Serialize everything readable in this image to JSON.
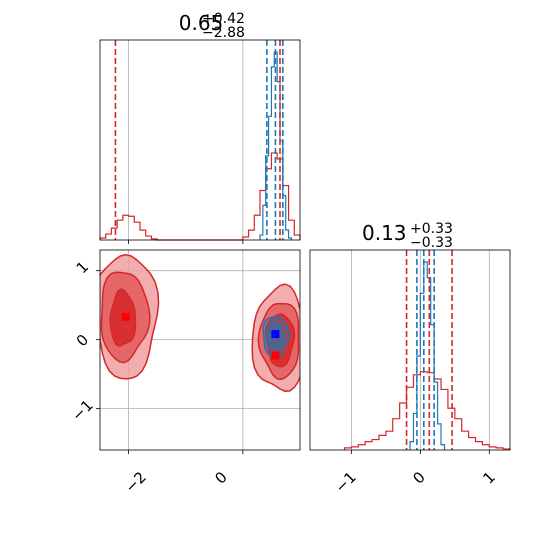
{
  "colors": {
    "red": "#d62728",
    "blue": "#1f77b4",
    "red_fill_outer": "#f0a0a0",
    "red_fill_mid": "#e35a5a",
    "red_fill_inner": "#d62728",
    "grid": "#b0b0b0",
    "marker_blue": "#0000ff",
    "marker_red": "#ff0000"
  },
  "chart_data": [
    {
      "type": "histogram",
      "panel": "top-left marginal (parameter 1)",
      "title_main": "0.65",
      "title_sup": "+0.42",
      "title_sub": "−2.88",
      "xlim": [
        -2.5,
        1.0
      ],
      "grid": true,
      "x_ticks": [
        -2,
        0
      ],
      "series": [
        {
          "color": "red",
          "bin_centers": [
            -2.45,
            -2.35,
            -2.25,
            -2.15,
            -2.05,
            -1.95,
            -1.85,
            -1.75,
            -1.65,
            -1.55,
            -1.45,
            -1.35,
            -1.25,
            -1.15,
            -1.05,
            -0.95,
            -0.85,
            -0.75,
            -0.65,
            -0.55,
            -0.45,
            -0.35,
            -0.25,
            -0.15,
            -0.05,
            0.05,
            0.15,
            0.25,
            0.35,
            0.45,
            0.55,
            0.65,
            0.75,
            0.85,
            0.95
          ],
          "counts": [
            2,
            6,
            12,
            20,
            25,
            24,
            18,
            10,
            4,
            1,
            0,
            0,
            0,
            0,
            0,
            0,
            0,
            0,
            0,
            0,
            0,
            0,
            0,
            0,
            0,
            3,
            10,
            25,
            50,
            72,
            88,
            82,
            55,
            20,
            5
          ]
        },
        {
          "color": "blue",
          "bin_centers": [
            0.325,
            0.375,
            0.425,
            0.475,
            0.525,
            0.575,
            0.625,
            0.675,
            0.725,
            0.775,
            0.825
          ],
          "counts": [
            5,
            35,
            85,
            125,
            175,
            190,
            160,
            100,
            45,
            10,
            2
          ]
        }
      ],
      "quantile_lines": [
        {
          "color": "red",
          "x": -2.23
        },
        {
          "color": "red",
          "x": 0.65
        },
        {
          "color": "red",
          "x": 1.07
        },
        {
          "color": "blue",
          "x": 0.42
        },
        {
          "color": "blue",
          "x": 0.57
        },
        {
          "color": "blue",
          "x": 0.7
        }
      ]
    },
    {
      "type": "contour",
      "panel": "bottom-left joint (parameter 1 vs parameter 2)",
      "xlim": [
        -2.5,
        1.0
      ],
      "ylim": [
        -1.6,
        1.3
      ],
      "grid": true,
      "x_ticks": [
        -2,
        0
      ],
      "y_ticks": [
        -1,
        0,
        1
      ],
      "red_contour_levels": [
        {
          "cx": -2.05,
          "cy": 0.35,
          "rx": 0.55,
          "ry": 0.9
        },
        {
          "cx": -2.08,
          "cy": 0.35,
          "rx": 0.42,
          "ry": 0.65
        },
        {
          "cx": -2.1,
          "cy": 0.3,
          "rx": 0.22,
          "ry": 0.4
        },
        {
          "cx": 0.65,
          "cy": 0.0,
          "rx": 0.48,
          "ry": 0.75
        },
        {
          "cx": 0.65,
          "cy": 0.0,
          "rx": 0.35,
          "ry": 0.55
        },
        {
          "cx": 0.65,
          "cy": 0.0,
          "rx": 0.24,
          "ry": 0.38
        }
      ],
      "blue_contour_levels": [
        {
          "cx": 0.57,
          "cy": 0.05,
          "rx": 0.22,
          "ry": 0.3
        },
        {
          "cx": 0.57,
          "cy": 0.05,
          "rx": 0.13,
          "ry": 0.18
        }
      ],
      "markers": [
        {
          "color": "marker_blue",
          "x": 0.57,
          "y": 0.08
        },
        {
          "color": "marker_red",
          "x": 0.57,
          "y": -0.23
        },
        {
          "color": "marker_red",
          "x": -2.05,
          "y": 0.33
        }
      ]
    },
    {
      "type": "histogram",
      "panel": "bottom-right marginal (parameter 2)",
      "title_main": "0.13",
      "title_sup": "+0.33",
      "title_sub": "−0.33",
      "xlim": [
        -1.6,
        1.3
      ],
      "grid": true,
      "x_ticks": [
        -1,
        0,
        1
      ],
      "series": [
        {
          "color": "red",
          "bin_centers": [
            -1.05,
            -0.95,
            -0.85,
            -0.75,
            -0.65,
            -0.55,
            -0.45,
            -0.35,
            -0.25,
            -0.15,
            -0.05,
            0.05,
            0.15,
            0.25,
            0.35,
            0.45,
            0.55,
            0.65,
            0.75,
            0.85,
            0.95,
            1.05,
            1.15,
            1.25
          ],
          "counts": [
            2,
            3,
            5,
            8,
            10,
            14,
            18,
            30,
            45,
            60,
            72,
            75,
            74,
            68,
            58,
            40,
            30,
            18,
            12,
            8,
            5,
            3,
            2,
            1
          ]
        },
        {
          "color": "blue",
          "bin_centers": [
            -0.125,
            -0.075,
            -0.025,
            0.025,
            0.075,
            0.125,
            0.175,
            0.225,
            0.275,
            0.325
          ],
          "counts": [
            8,
            35,
            90,
            150,
            180,
            165,
            120,
            65,
            25,
            5
          ]
        }
      ],
      "quantile_lines": [
        {
          "color": "red",
          "x": -0.2
        },
        {
          "color": "red",
          "x": 0.13
        },
        {
          "color": "red",
          "x": 0.46
        },
        {
          "color": "blue",
          "x": -0.05
        },
        {
          "color": "blue",
          "x": 0.05
        },
        {
          "color": "blue",
          "x": 0.2
        }
      ]
    }
  ],
  "tick_labels": {
    "x1_neg2": "−2",
    "x1_0": "0",
    "y2_1": "1",
    "y2_0": "0",
    "y2_neg1": "−1",
    "x2_neg1": "−1",
    "x2_0": "0",
    "x2_1": "1"
  }
}
